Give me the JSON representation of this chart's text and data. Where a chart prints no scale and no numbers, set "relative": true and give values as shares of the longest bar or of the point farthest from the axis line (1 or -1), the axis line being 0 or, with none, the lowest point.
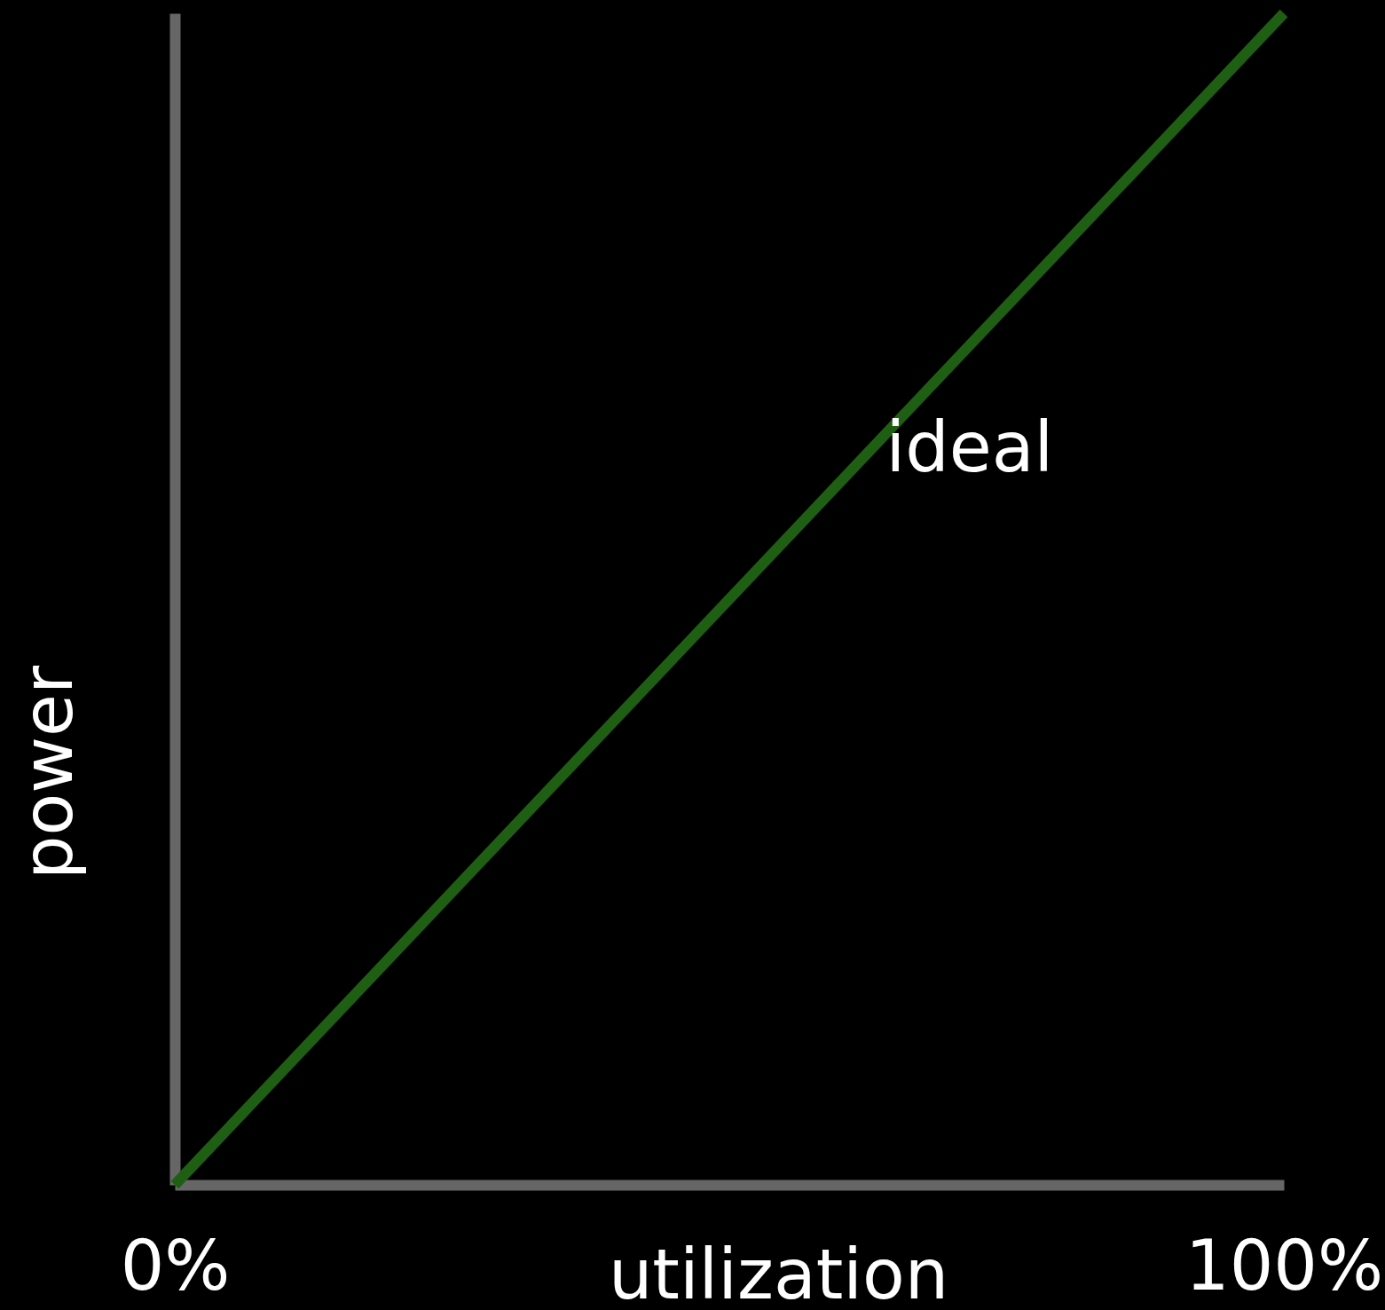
{
  "chart_data": {
    "type": "line",
    "relative": true,
    "xlabel": "utilization",
    "ylabel": "power",
    "xlim": [
      0,
      100
    ],
    "xticks": [
      {
        "value": 0,
        "label": "0%"
      },
      {
        "value": 100,
        "label": "100%"
      }
    ],
    "x": [
      0,
      100
    ],
    "series": [
      {
        "name": "ideal",
        "color": "#1f5f13",
        "values": [
          0,
          1
        ]
      }
    ],
    "grid": false,
    "marker": "none",
    "line_style": "solid"
  }
}
